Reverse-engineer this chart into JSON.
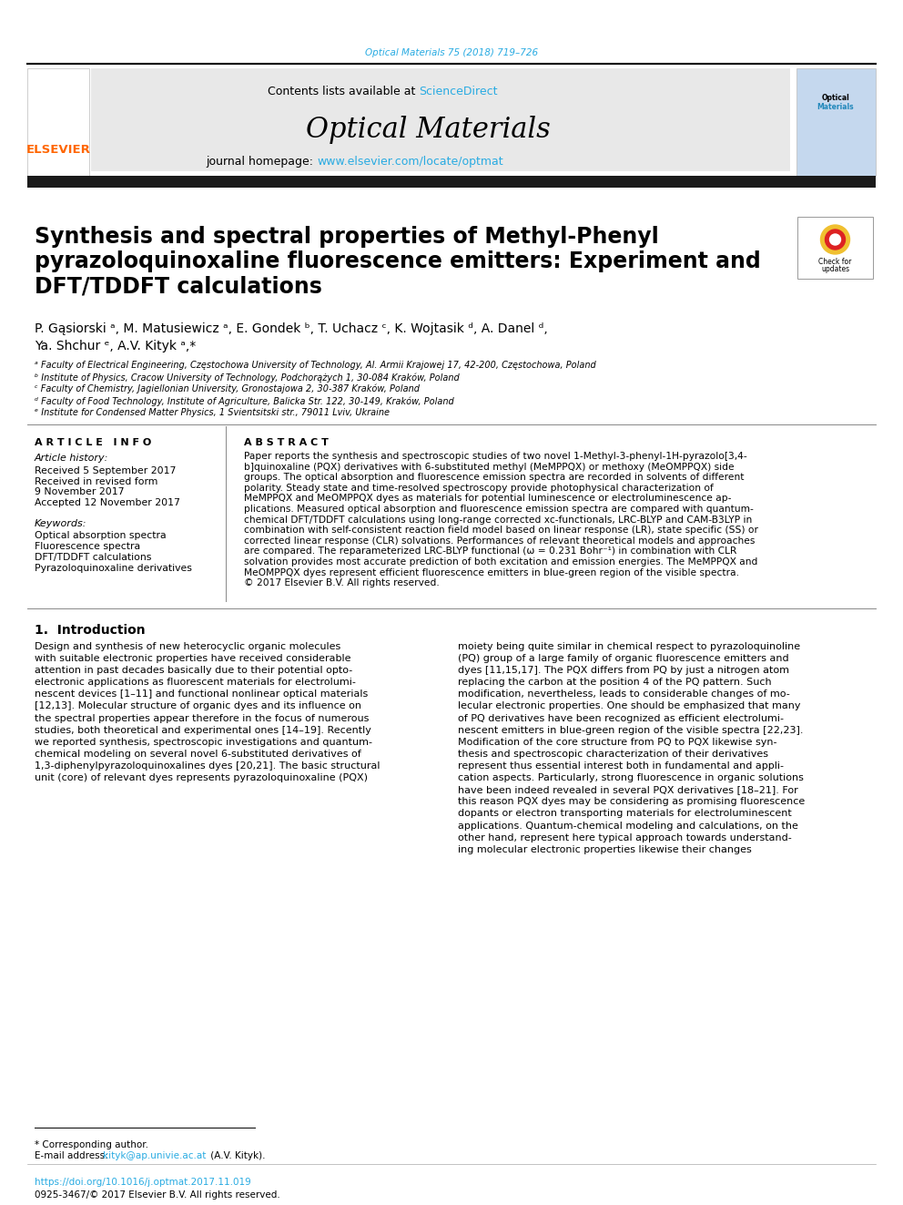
{
  "page_bg": "#ffffff",
  "top_journal_ref": "Optical Materials 75 (2018) 719–726",
  "top_journal_ref_color": "#29ABE2",
  "header_bg": "#e8e8e8",
  "header_contents": "Contents lists available at",
  "header_sciencedirect": "ScienceDirect",
  "header_sciencedirect_color": "#29ABE2",
  "journal_title": "Optical Materials",
  "journal_homepage_text": "journal homepage:",
  "journal_url": "www.elsevier.com/locate/optmat",
  "journal_url_color": "#29ABE2",
  "black_bar_color": "#1a1a1a",
  "elsevier_color": "#FF6600",
  "article_title_line1": "Synthesis and spectral properties of Methyl-Phenyl",
  "article_title_line2": "pyrazoloquinoxaline fluorescence emitters: Experiment and",
  "article_title_line3": "DFT/TDDFT calculations",
  "authors": "P. Gąsiorski ᵃ, M. Matusiewicz ᵃ, E. Gondek ᵇ, T. Uchacz ᶜ, K. Wojtasik ᵈ, A. Danel ᵈ,",
  "authors2": "Ya. Shchur ᵉ, A.V. Kityk ᵃ,*",
  "affil_a": "ᵃ Faculty of Electrical Engineering, Częstochowa University of Technology, Al. Armii Krajowej 17, 42-200, Częstochowa, Poland",
  "affil_b": "ᵇ Institute of Physics, Cracow University of Technology, Podchorążych 1, 30-084 Kraków, Poland",
  "affil_c": "ᶜ Faculty of Chemistry, Jagiellonian University, Gronostajowa 2, 30-387 Kraków, Poland",
  "affil_d": "ᵈ Faculty of Food Technology, Institute of Agriculture, Balicka Str. 122, 30-149, Kraków, Poland",
  "affil_e": "ᵉ Institute for Condensed Matter Physics, 1 Svientsitski str., 79011 Lviv, Ukraine",
  "article_info_header": "A R T I C L E   I N F O",
  "article_history": "Article history:",
  "received": "Received 5 September 2017",
  "received_revised": "Received in revised form",
  "received_revised2": "9 November 2017",
  "accepted": "Accepted 12 November 2017",
  "keywords_header": "Keywords:",
  "keyword1": "Optical absorption spectra",
  "keyword2": "Fluorescence spectra",
  "keyword3": "DFT/TDDFT calculations",
  "keyword4": "Pyrazoloquinoxaline derivatives",
  "abstract_header": "A B S T R A C T",
  "abstract_text_lines": [
    "Paper reports the synthesis and spectroscopic studies of two novel 1-Methyl-3-phenyl-1H-pyrazolo[3,4-",
    "b]quinoxaline (PQX) derivatives with 6-substituted methyl (MeMPPQX) or methoxy (MeOMPPQX) side",
    "groups. The optical absorption and fluorescence emission spectra are recorded in solvents of different",
    "polarity. Steady state and time-resolved spectroscopy provide photophysical characterization of",
    "MeMPPQX and MeOMPPQX dyes as materials for potential luminescence or electroluminescence ap-",
    "plications. Measured optical absorption and fluorescence emission spectra are compared with quantum-",
    "chemical DFT/TDDFT calculations using long-range corrected xc-functionals, LRC-BLYP and CAM-B3LYP in",
    "combination with self-consistent reaction field model based on linear response (LR), state specific (SS) or",
    "corrected linear response (CLR) solvations. Performances of relevant theoretical models and approaches",
    "are compared. The reparameterized LRC-BLYP functional (ω = 0.231 Bohr⁻¹) in combination with CLR",
    "solvation provides most accurate prediction of both excitation and emission energies. The MeMPPQX and",
    "MeOMPPQX dyes represent efficient fluorescence emitters in blue-green region of the visible spectra.",
    "© 2017 Elsevier B.V. All rights reserved."
  ],
  "intro_header": "1.  Introduction",
  "intro_col1_lines": [
    "Design and synthesis of new heterocyclic organic molecules",
    "with suitable electronic properties have received considerable",
    "attention in past decades basically due to their potential opto-",
    "electronic applications as fluorescent materials for electrolumi-",
    "nescent devices [1–11] and functional nonlinear optical materials",
    "[12,13]. Molecular structure of organic dyes and its influence on",
    "the spectral properties appear therefore in the focus of numerous",
    "studies, both theoretical and experimental ones [14–19]. Recently",
    "we reported synthesis, spectroscopic investigations and quantum-",
    "chemical modeling on several novel 6-substituted derivatives of",
    "1,3-diphenylpyrazoloquinoxalines dyes [20,21]. The basic structural",
    "unit (core) of relevant dyes represents pyrazoloquinoxaline (PQX)"
  ],
  "intro_col2_lines": [
    "moiety being quite similar in chemical respect to pyrazoloquinoline",
    "(PQ) group of a large family of organic fluorescence emitters and",
    "dyes [11,15,17]. The PQX differs from PQ by just a nitrogen atom",
    "replacing the carbon at the position 4 of the PQ pattern. Such",
    "modification, nevertheless, leads to considerable changes of mo-",
    "lecular electronic properties. One should be emphasized that many",
    "of PQ derivatives have been recognized as efficient electrolumi-",
    "nescent emitters in blue-green region of the visible spectra [22,23].",
    "Modification of the core structure from PQ to PQX likewise syn-",
    "thesis and spectroscopic characterization of their derivatives",
    "represent thus essential interest both in fundamental and appli-",
    "cation aspects. Particularly, strong fluorescence in organic solutions",
    "have been indeed revealed in several PQX derivatives [18–21]. For",
    "this reason PQX dyes may be considering as promising fluorescence",
    "dopants or electron transporting materials for electroluminescent",
    "applications. Quantum-chemical modeling and calculations, on the",
    "other hand, represent here typical approach towards understand-",
    "ing molecular electronic properties likewise their changes"
  ],
  "footnote_star": "* Corresponding author.",
  "footnote_email_label": "E-mail address: ",
  "footnote_email_link": "kityk@ap.univie.ac.at",
  "footnote_email_suffix": " (A.V. Kityk).",
  "footnote_email_color": "#29ABE2",
  "footnote_doi": "https://doi.org/10.1016/j.optmat.2017.11.019",
  "footnote_doi_color": "#29ABE2",
  "footnote_issn": "0925-3467/© 2017 Elsevier B.V. All rights reserved."
}
